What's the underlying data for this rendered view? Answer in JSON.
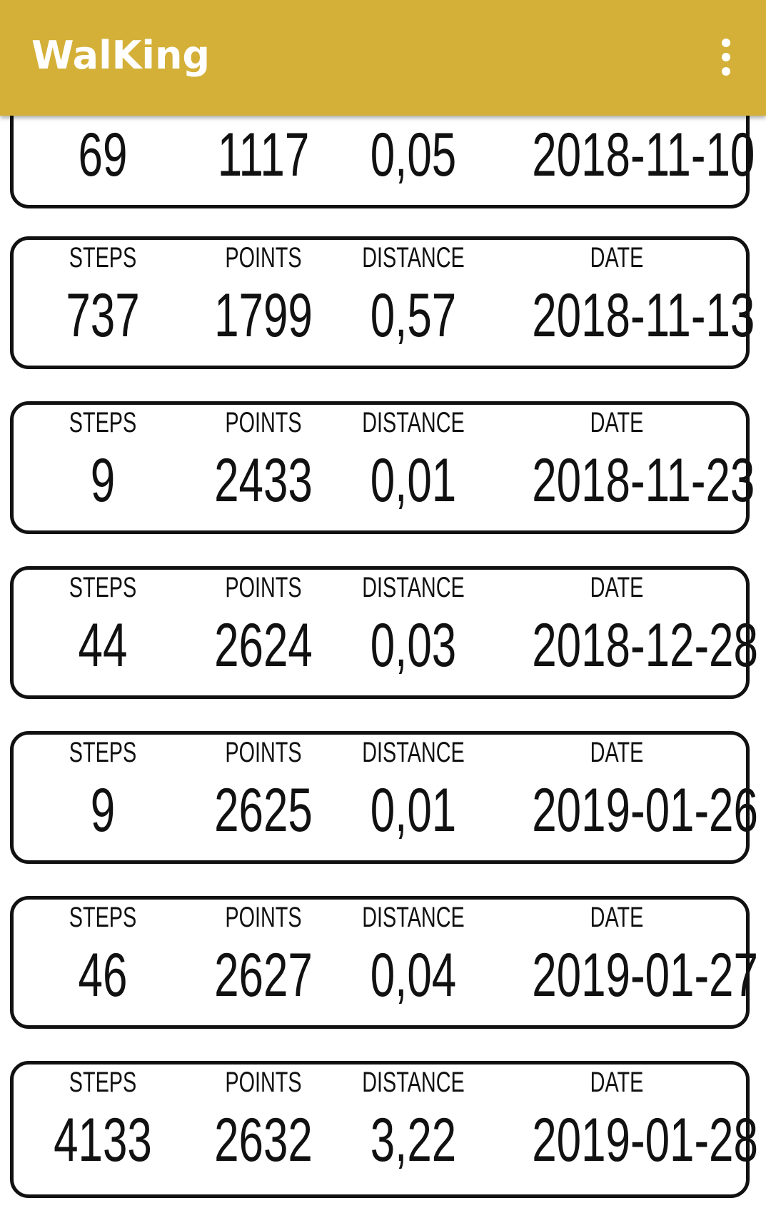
{
  "app": {
    "title": "WalKing"
  },
  "labels": {
    "steps": "STEPS",
    "points": "POINTS",
    "distance": "DISTANCE",
    "date": "DATE"
  },
  "records": [
    {
      "steps": "69",
      "points": "1117",
      "distance": "0,05",
      "date": "2018-11-10"
    },
    {
      "steps": "737",
      "points": "1799",
      "distance": "0,57",
      "date": "2018-11-13"
    },
    {
      "steps": "9",
      "points": "2433",
      "distance": "0,01",
      "date": "2018-11-23"
    },
    {
      "steps": "44",
      "points": "2624",
      "distance": "0,03",
      "date": "2018-12-28"
    },
    {
      "steps": "9",
      "points": "2625",
      "distance": "0,01",
      "date": "2019-01-26"
    },
    {
      "steps": "46",
      "points": "2627",
      "distance": "0,04",
      "date": "2019-01-27"
    },
    {
      "steps": "4133",
      "points": "2632",
      "distance": "3,22",
      "date": "2019-01-28"
    }
  ],
  "colors": {
    "appbar": "#D4B038",
    "text": "#111111"
  },
  "icons": {
    "overflow_menu": "more-vert-icon"
  }
}
